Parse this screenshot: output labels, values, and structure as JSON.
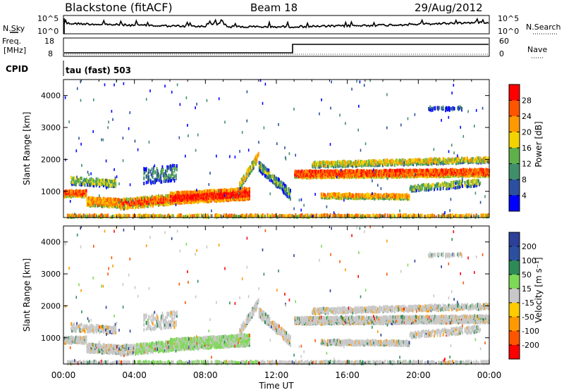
{
  "header": {
    "site": "Blackstone (fitACF)",
    "beam": "Beam 18",
    "date": "29/Aug/2012"
  },
  "noise_panel": {
    "left_label": "N.Sky",
    "right_label": "N.Search",
    "left_ticks": [
      "10^5",
      "10^0"
    ],
    "right_ticks": [
      "10^5",
      "10^0"
    ]
  },
  "freq_panel": {
    "left_label_1": "Freq.",
    "left_label_2": "[MHz]",
    "right_label": "Nave",
    "left_ticks": [
      "18",
      "8"
    ],
    "right_ticks": [
      "60",
      "0"
    ]
  },
  "cpid": {
    "label": "CPID",
    "mode": "tau (fast) 503"
  },
  "colors": {
    "power_scale": [
      "#0000ff",
      "#2c4fa0",
      "#3f8f6a",
      "#5fb04a",
      "#f2d300",
      "#ff9900",
      "#ff5500",
      "#ff0000"
    ],
    "velocity_scale": [
      "#ff0000",
      "#ff5500",
      "#ff9900",
      "#c8c8c8",
      "#c8c8c8",
      "#7ed957",
      "#2e8b57",
      "#2c3f9a"
    ]
  },
  "chart_data": [
    {
      "type": "heatmap",
      "name": "power",
      "ylabel": "Slant Range [km]",
      "yticks": [
        "1000",
        "2000",
        "3000",
        "4000"
      ],
      "colorbar_label": "Power [dB]",
      "colorbar_ticks": [
        "28",
        "24",
        "20",
        "16",
        "12",
        "8",
        "4"
      ],
      "ylim": [
        180,
        4500
      ],
      "xlim_hours": [
        0,
        24
      ]
    },
    {
      "type": "heatmap",
      "name": "velocity",
      "ylabel": "Slant Range [km]",
      "yticks": [
        "1000",
        "2000",
        "3000",
        "4000"
      ],
      "colorbar_label": "Velocity [m s⁻¹]",
      "colorbar_ticks": [
        "200",
        "100",
        "50",
        "15",
        "-15",
        "-50",
        "-100",
        "-200"
      ],
      "ylim": [
        180,
        4500
      ],
      "xlim_hours": [
        0,
        24
      ]
    }
  ],
  "xaxis": {
    "ticks": [
      "00:00",
      "04:00",
      "08:00",
      "12:00",
      "16:00",
      "20:00",
      "00:00"
    ],
    "label": "Time UT"
  }
}
